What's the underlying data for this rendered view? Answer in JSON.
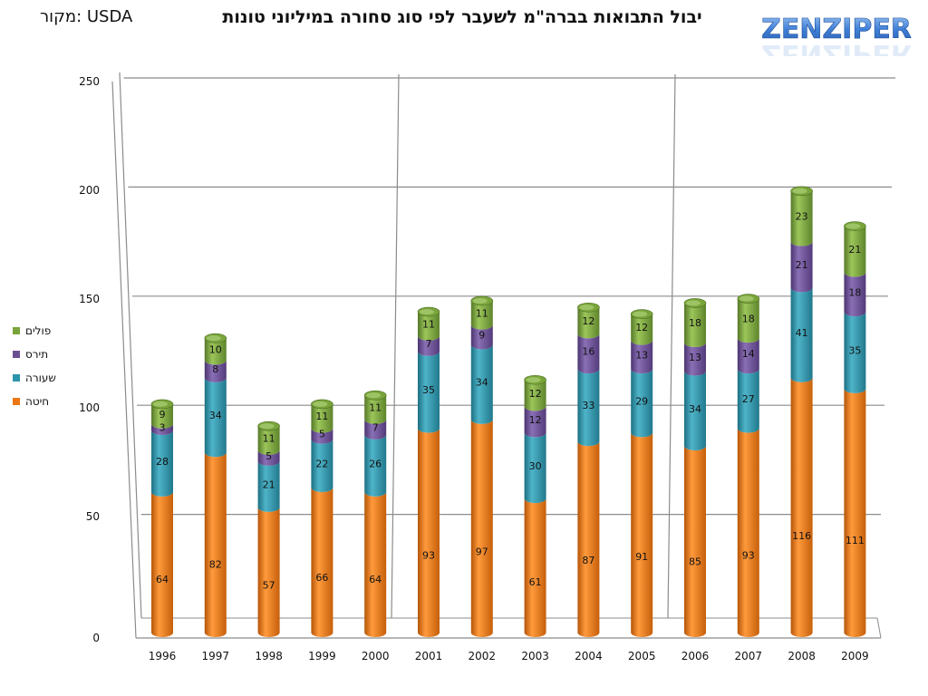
{
  "header": {
    "title": "יבול התבואות בברה\"מ לשעבר לפי סוג סחורה במיליוני טונות",
    "source": "מקור: USDA",
    "logo_text": "ZENZIPER"
  },
  "colors": {
    "wheat": "#ed7712",
    "barley": "#2c95ab",
    "rye": "#6a4f93",
    "corn": "#79a43a",
    "grid": "#8c8c8c",
    "logo": "#3f7fd6"
  },
  "chart_data": {
    "type": "bar",
    "stacked": true,
    "title": "יבול התבואות בברה\"מ לשעבר לפי סוג סחורה במיליוני טונות",
    "categories": [
      "1996",
      "1997",
      "1998",
      "1999",
      "2000",
      "2001",
      "2002",
      "2003",
      "2004",
      "2005",
      "2006",
      "2007",
      "2008",
      "2009"
    ],
    "series": [
      {
        "name": "חיטה",
        "color": "#ed7712",
        "values": [
          64,
          82,
          57,
          66,
          64,
          93,
          97,
          61,
          87,
          91,
          85,
          93,
          116,
          111
        ]
      },
      {
        "name": "שעורה",
        "color": "#2c95ab",
        "values": [
          28,
          34,
          21,
          22,
          26,
          35,
          34,
          30,
          33,
          29,
          34,
          27,
          41,
          35
        ]
      },
      {
        "name": "תירס",
        "color": "#6a4f93",
        "values": [
          3,
          8,
          5,
          5,
          7,
          7,
          9,
          12,
          16,
          13,
          13,
          14,
          21,
          18
        ]
      },
      {
        "name": "פולים",
        "color": "#79a43a",
        "values": [
          9,
          10,
          11,
          11,
          11,
          11,
          11,
          12,
          12,
          12,
          18,
          18,
          23,
          21
        ]
      }
    ],
    "ylim": [
      0,
      250
    ],
    "yticks": [
      "0",
      "50",
      "100",
      "150",
      "200",
      "250"
    ],
    "grid": true,
    "legend": "left"
  }
}
